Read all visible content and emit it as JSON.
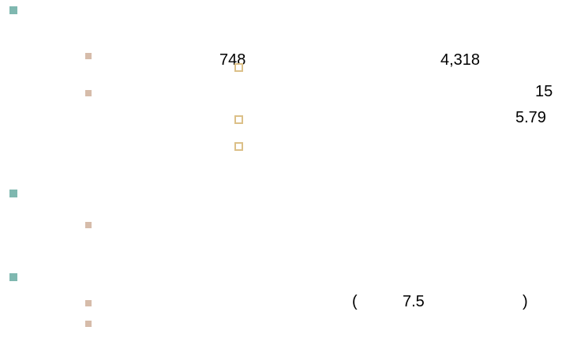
{
  "slide": {
    "texts": [
      "748",
      "4,318",
      "15",
      "5.79",
      "(",
      "7.5",
      ")"
    ]
  }
}
